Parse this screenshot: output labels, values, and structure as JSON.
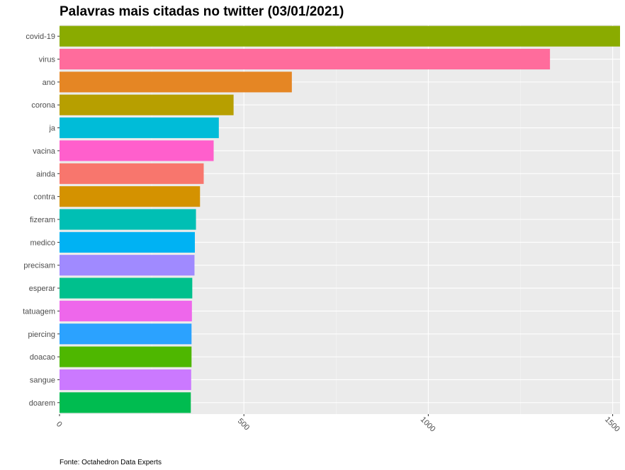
{
  "chart_data": {
    "type": "bar",
    "orientation": "horizontal",
    "title": "Palavras mais citadas no twitter (03/01/2021)",
    "caption": "Fonte: Octahedron Data Experts",
    "xlabel": "",
    "ylabel": "",
    "xlim": [
      0,
      1520
    ],
    "x_ticks": [
      0,
      500,
      1000,
      1500
    ],
    "grid": true,
    "legend": "none",
    "background": "#ebebeb",
    "categories": [
      "covid-19",
      "virus",
      "ano",
      "corona",
      "ja",
      "vacina",
      "ainda",
      "contra",
      "fizeram",
      "medico",
      "precisam",
      "esperar",
      "tatuagem",
      "piercing",
      "doacao",
      "sangue",
      "doarem"
    ],
    "values": [
      1525,
      1330,
      630,
      472,
      432,
      418,
      391,
      381,
      370,
      367,
      366,
      360,
      359,
      358,
      358,
      357,
      356
    ],
    "colors": [
      "#8AAB00",
      "#FF6C9C",
      "#E58624",
      "#B79F00",
      "#00BCD8",
      "#FF5FCC",
      "#F8766D",
      "#D49200",
      "#00BFB4",
      "#00B2F3",
      "#A08AFF",
      "#00C08D",
      "#EE67EB",
      "#2BA2FF",
      "#4EB700",
      "#CB79FF",
      "#00BC50"
    ]
  }
}
